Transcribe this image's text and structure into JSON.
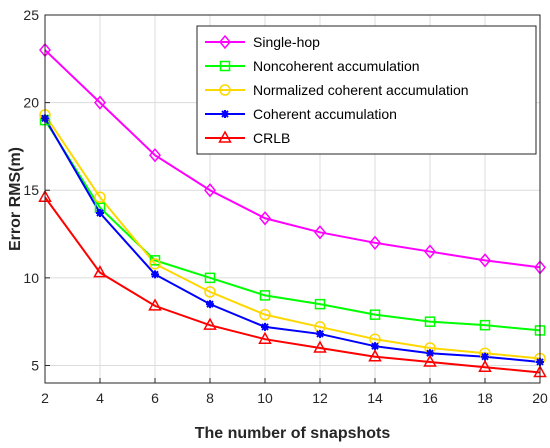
{
  "chart_data": {
    "type": "line",
    "xlabel": "The number of snapshots",
    "ylabel": "Error RMS(m)",
    "x": [
      2,
      4,
      6,
      8,
      10,
      12,
      14,
      16,
      18,
      20
    ],
    "xlim": [
      2,
      20
    ],
    "ylim": [
      4,
      25
    ],
    "xticks": [
      2,
      4,
      6,
      8,
      10,
      12,
      14,
      16,
      18,
      20
    ],
    "yticks": [
      5,
      10,
      15,
      20,
      25
    ],
    "grid": true,
    "legend_position": "top-right",
    "series": [
      {
        "name": "Single-hop",
        "color": "#ff00ff",
        "marker": "diamond",
        "values": [
          23.0,
          20.0,
          17.0,
          15.0,
          13.4,
          12.6,
          12.0,
          11.5,
          11.0,
          10.6
        ]
      },
      {
        "name": "Noncoherent accumulation",
        "color": "#00ff00",
        "marker": "square",
        "values": [
          19.0,
          14.0,
          11.0,
          10.0,
          9.0,
          8.5,
          7.9,
          7.5,
          7.3,
          7.0
        ]
      },
      {
        "name": "Normalized coherent accumulation",
        "color": "#ffd700",
        "marker": "circle",
        "values": [
          19.3,
          14.6,
          10.8,
          9.2,
          7.9,
          7.2,
          6.5,
          6.0,
          5.7,
          5.4
        ]
      },
      {
        "name": "Coherent accumulation",
        "color": "#0000ff",
        "marker": "star",
        "values": [
          19.1,
          13.7,
          10.2,
          8.5,
          7.2,
          6.8,
          6.1,
          5.7,
          5.5,
          5.2
        ]
      },
      {
        "name": "CRLB",
        "color": "#ff0000",
        "marker": "triangle",
        "values": [
          14.6,
          10.3,
          8.4,
          7.3,
          6.5,
          6.0,
          5.5,
          5.2,
          4.9,
          4.6
        ]
      }
    ]
  }
}
